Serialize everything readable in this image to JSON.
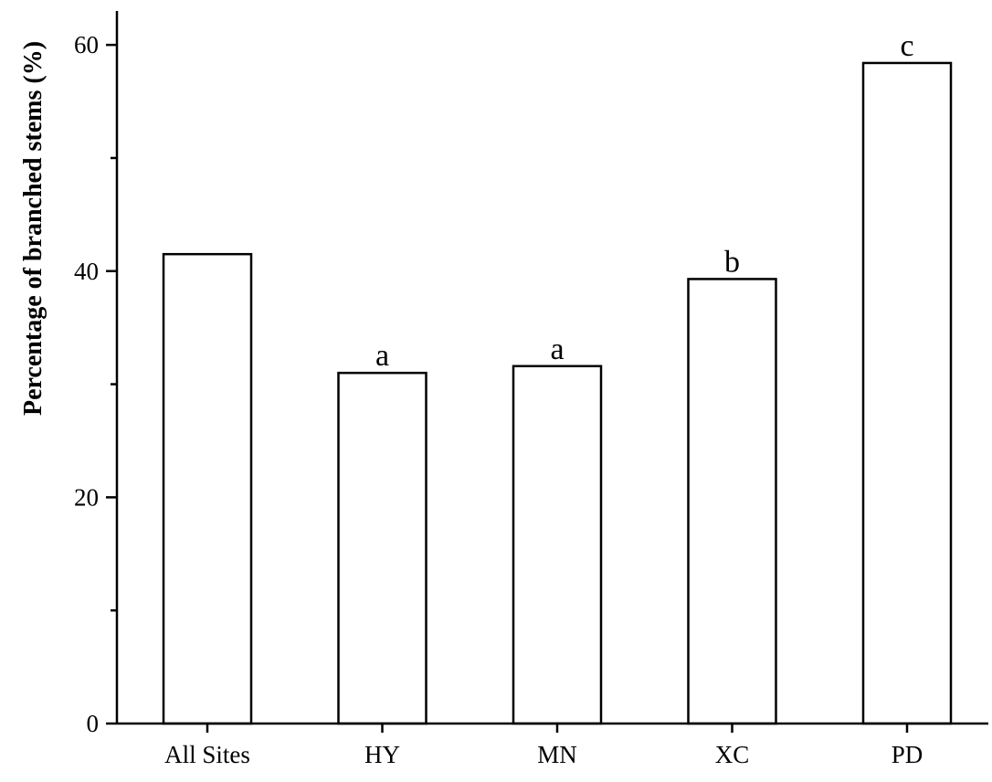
{
  "chart_data": {
    "type": "bar",
    "categories": [
      "All Sites",
      "HY",
      "MN",
      "XC",
      "PD"
    ],
    "values": [
      41.5,
      31.0,
      31.6,
      39.3,
      58.4
    ],
    "significance_letters": [
      "",
      "a",
      "a",
      "b",
      "c"
    ],
    "title": "",
    "xlabel": "",
    "ylabel": "Percentage of branched stems (%)",
    "ylim": [
      0,
      63
    ],
    "y_major_ticks": [
      0,
      20,
      40,
      60
    ],
    "y_minor_ticks": [
      10,
      30,
      50
    ],
    "grid": false,
    "bar_fill": "#ffffff",
    "bar_stroke": "#000000"
  }
}
